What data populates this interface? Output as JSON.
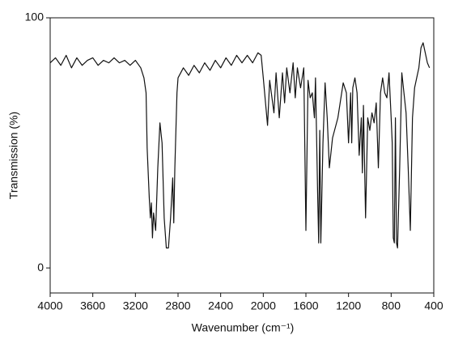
{
  "chart_data": {
    "type": "line",
    "xlabel": "Wavenumber (cm⁻¹)",
    "ylabel": "Transmission (%)",
    "xlim": [
      4000,
      400
    ],
    "ylim": [
      -10,
      100
    ],
    "xticks": [
      4000,
      3600,
      3200,
      2800,
      2400,
      2000,
      1600,
      1200,
      800,
      400
    ],
    "yticks": [
      0,
      100
    ],
    "grid": false,
    "series": [
      {
        "name": null,
        "color": "#111111",
        "x": [
          4000,
          3950,
          3900,
          3850,
          3800,
          3750,
          3700,
          3650,
          3600,
          3550,
          3500,
          3450,
          3400,
          3350,
          3300,
          3250,
          3200,
          3150,
          3120,
          3100,
          3090,
          3070,
          3060,
          3050,
          3040,
          3030,
          3010,
          2990,
          2970,
          2950,
          2930,
          2910,
          2890,
          2870,
          2850,
          2840,
          2830,
          2810,
          2800,
          2750,
          2700,
          2650,
          2600,
          2550,
          2500,
          2450,
          2400,
          2350,
          2300,
          2250,
          2200,
          2150,
          2100,
          2050,
          2020,
          2000,
          1960,
          1940,
          1900,
          1880,
          1850,
          1820,
          1800,
          1780,
          1750,
          1720,
          1700,
          1680,
          1650,
          1620,
          1600,
          1580,
          1560,
          1540,
          1520,
          1510,
          1490,
          1480,
          1470,
          1460,
          1440,
          1420,
          1400,
          1380,
          1350,
          1300,
          1250,
          1220,
          1200,
          1180,
          1170,
          1160,
          1140,
          1120,
          1100,
          1080,
          1070,
          1060,
          1040,
          1020,
          1000,
          980,
          960,
          940,
          920,
          900,
          880,
          860,
          840,
          820,
          800,
          790,
          780,
          770,
          760,
          750,
          740,
          720,
          700,
          680,
          660,
          640,
          620,
          600,
          580,
          560,
          540,
          520,
          500,
          480,
          460,
          440
        ],
        "values": [
          82,
          84,
          81,
          85,
          80,
          84,
          81,
          83,
          84,
          81,
          83,
          82,
          84,
          82,
          83,
          81,
          83,
          80,
          76,
          70,
          48,
          28,
          20,
          26,
          12,
          22,
          15,
          40,
          58,
          50,
          20,
          8,
          8,
          20,
          36,
          18,
          40,
          70,
          76,
          80,
          77,
          81,
          78,
          82,
          79,
          83,
          80,
          84,
          81,
          85,
          82,
          85,
          82,
          86,
          85,
          76,
          57,
          75,
          62,
          78,
          60,
          78,
          66,
          80,
          70,
          82,
          68,
          80,
          72,
          80,
          15,
          75,
          68,
          70,
          60,
          76,
          30,
          10,
          55,
          10,
          50,
          74,
          60,
          40,
          52,
          60,
          74,
          70,
          50,
          70,
          50,
          72,
          76,
          70,
          45,
          60,
          38,
          65,
          20,
          60,
          55,
          62,
          58,
          66,
          40,
          70,
          76,
          70,
          68,
          78,
          60,
          50,
          12,
          10,
          60,
          10,
          8,
          40,
          78,
          70,
          62,
          40,
          15,
          60,
          72,
          76,
          80,
          88,
          90,
          86,
          82,
          80
        ]
      }
    ]
  }
}
